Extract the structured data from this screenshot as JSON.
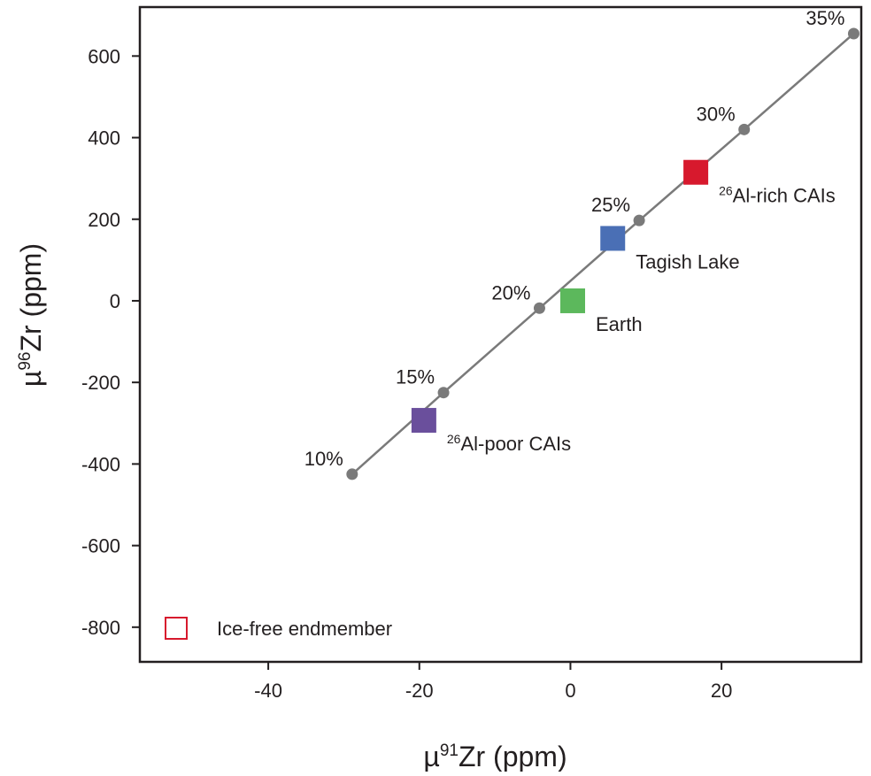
{
  "chart_data": {
    "type": "scatter",
    "title": "",
    "xlabel": {
      "prefix": "µ",
      "sup": "91",
      "main": "Zr (ppm)"
    },
    "ylabel": {
      "prefix": "µ",
      "sup": "96",
      "main": "Zr (ppm)"
    },
    "xlim": [
      -57,
      38.5
    ],
    "ylim": [
      -885,
      720
    ],
    "xticks": [
      -40,
      -20,
      0,
      20
    ],
    "xtick_labels": [
      "-40",
      "-20",
      "0",
      "20"
    ],
    "yticks": [
      600,
      400,
      200,
      0,
      -200,
      -400,
      -600,
      -800
    ],
    "ytick_labels": [
      "600",
      "400",
      "200",
      "0",
      "-200",
      "-400",
      "-600",
      "-800"
    ],
    "grid": false,
    "mixing_line": {
      "name": "Ice-free endmember mixing line",
      "color": "#7a7a7a",
      "points": [
        {
          "x": -28.9,
          "y": -425,
          "label": "10%"
        },
        {
          "x": -16.8,
          "y": -225,
          "label": "15%"
        },
        {
          "x": -4.1,
          "y": -18,
          "label": "20%"
        },
        {
          "x": 9.1,
          "y": 197,
          "label": "25%"
        },
        {
          "x": 23.0,
          "y": 420,
          "label": "30%"
        },
        {
          "x": 37.5,
          "y": 655,
          "label": "35%"
        }
      ]
    },
    "samples": [
      {
        "name_sup": "26",
        "name": "Al-poor CAIs",
        "x": -19.4,
        "y": -293,
        "color": "#6a4f9c"
      },
      {
        "name_sup": "",
        "name": "Earth",
        "x": 0.3,
        "y": 0,
        "color": "#5cb85c"
      },
      {
        "name_sup": "",
        "name": "Tagish Lake",
        "x": 5.6,
        "y": 153,
        "color": "#4a6fb5"
      },
      {
        "name_sup": "26",
        "name": "Al-rich CAIs",
        "x": 16.6,
        "y": 315,
        "color": "#d7192d"
      }
    ],
    "legend": {
      "position": "bottom-left",
      "entries": [
        {
          "label": "Ice-free endmember",
          "marker": "open-square",
          "color": "#d7192d"
        }
      ]
    }
  }
}
